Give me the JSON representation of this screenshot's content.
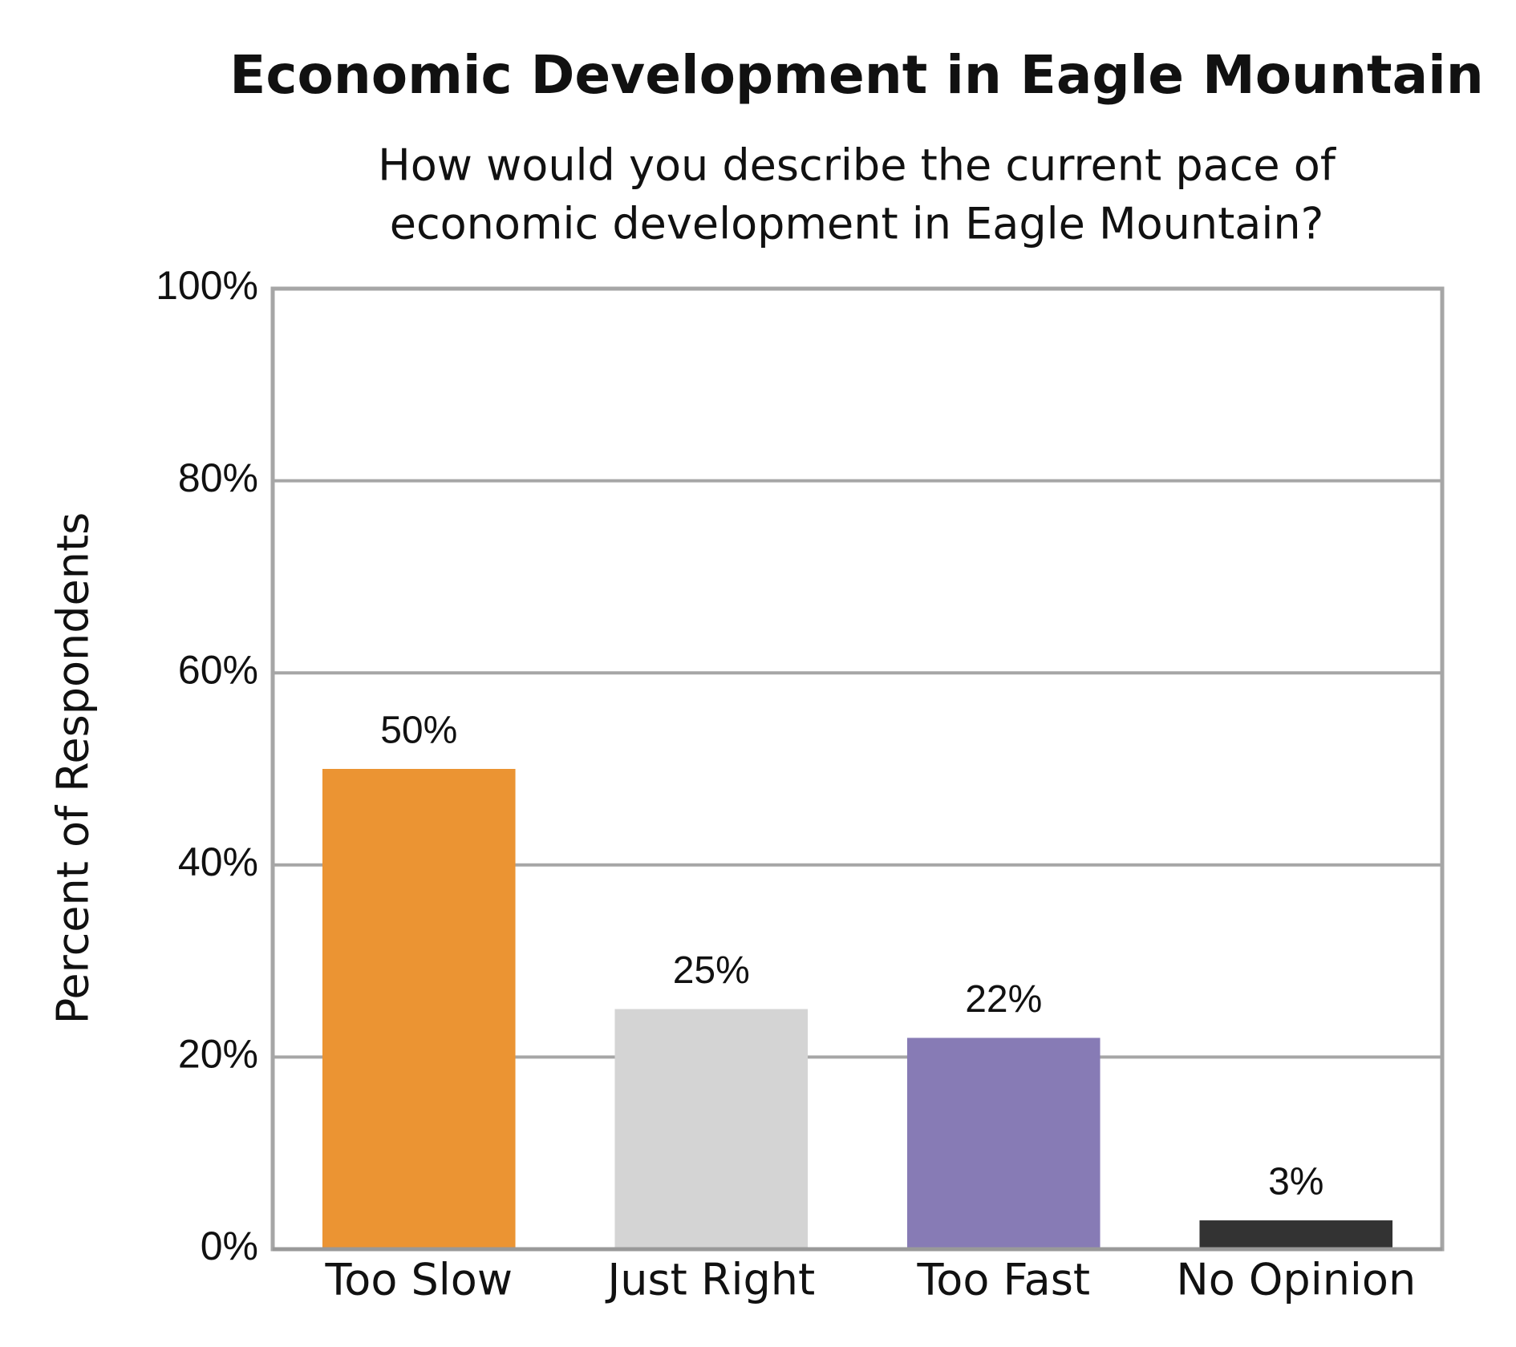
{
  "chart_data": {
    "type": "bar",
    "title": "Economic Development in Eagle Mountain",
    "subtitle": [
      "How would you describe the current pace of",
      "economic development in Eagle Mountain?"
    ],
    "y_label": "Percent of Respondents",
    "categories": [
      "Too Slow",
      "Just Right",
      "Too Fast",
      "No Opinion"
    ],
    "values": [
      50,
      25,
      22,
      3
    ],
    "value_labels": [
      "50%",
      "25%",
      "22%",
      "3%"
    ],
    "colors": [
      "#eb9433",
      "#d4d4d4",
      "#877bb5",
      "#333333"
    ],
    "ylim": [
      0,
      100
    ],
    "yticks": [
      {
        "value": 0,
        "label": "0%"
      },
      {
        "value": 20,
        "label": "20%"
      },
      {
        "value": 40,
        "label": "40%"
      },
      {
        "value": 60,
        "label": "60%"
      },
      {
        "value": 80,
        "label": "80%"
      },
      {
        "value": 100,
        "label": "100%"
      }
    ],
    "grid": true
  }
}
